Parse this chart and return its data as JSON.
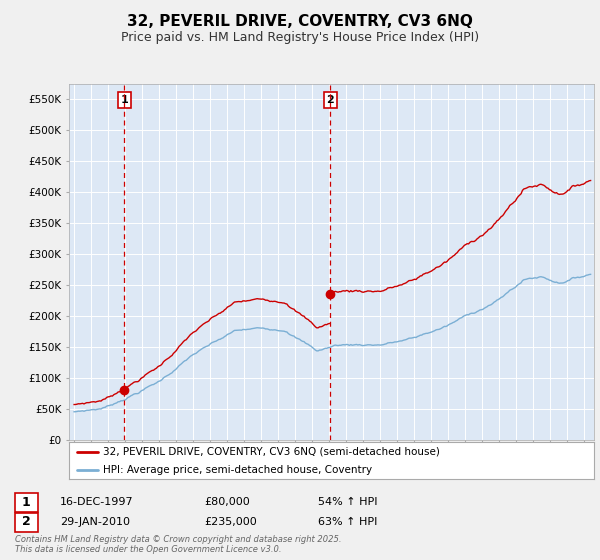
{
  "title": "32, PEVERIL DRIVE, COVENTRY, CV3 6NQ",
  "subtitle": "Price paid vs. HM Land Registry's House Price Index (HPI)",
  "ylim": [
    0,
    575000
  ],
  "yticks": [
    0,
    50000,
    100000,
    150000,
    200000,
    250000,
    300000,
    350000,
    400000,
    450000,
    500000,
    550000
  ],
  "ytick_labels": [
    "£0",
    "£50K",
    "£100K",
    "£150K",
    "£200K",
    "£250K",
    "£300K",
    "£350K",
    "£400K",
    "£450K",
    "£500K",
    "£550K"
  ],
  "xlim_start": 1994.7,
  "xlim_end": 2025.6,
  "purchase1_date": 1997.96,
  "purchase1_price": 80000,
  "purchase2_date": 2010.08,
  "purchase2_price": 235000,
  "red_line_color": "#cc0000",
  "blue_line_color": "#7bafd4",
  "blue_fill_color": "#dde8f5",
  "vline_color": "#cc0000",
  "background_color": "#f0f0f0",
  "plot_bg_color": "#dde8f5",
  "grid_color": "#ffffff",
  "legend_label_red": "32, PEVERIL DRIVE, COVENTRY, CV3 6NQ (semi-detached house)",
  "legend_label_blue": "HPI: Average price, semi-detached house, Coventry",
  "table_row1": [
    "1",
    "16-DEC-1997",
    "£80,000",
    "54% ↑ HPI"
  ],
  "table_row2": [
    "2",
    "29-JAN-2010",
    "£235,000",
    "63% ↑ HPI"
  ],
  "footnote": "Contains HM Land Registry data © Crown copyright and database right 2025.\nThis data is licensed under the Open Government Licence v3.0.",
  "title_fontsize": 11,
  "subtitle_fontsize": 9,
  "tick_fontsize": 7.5
}
